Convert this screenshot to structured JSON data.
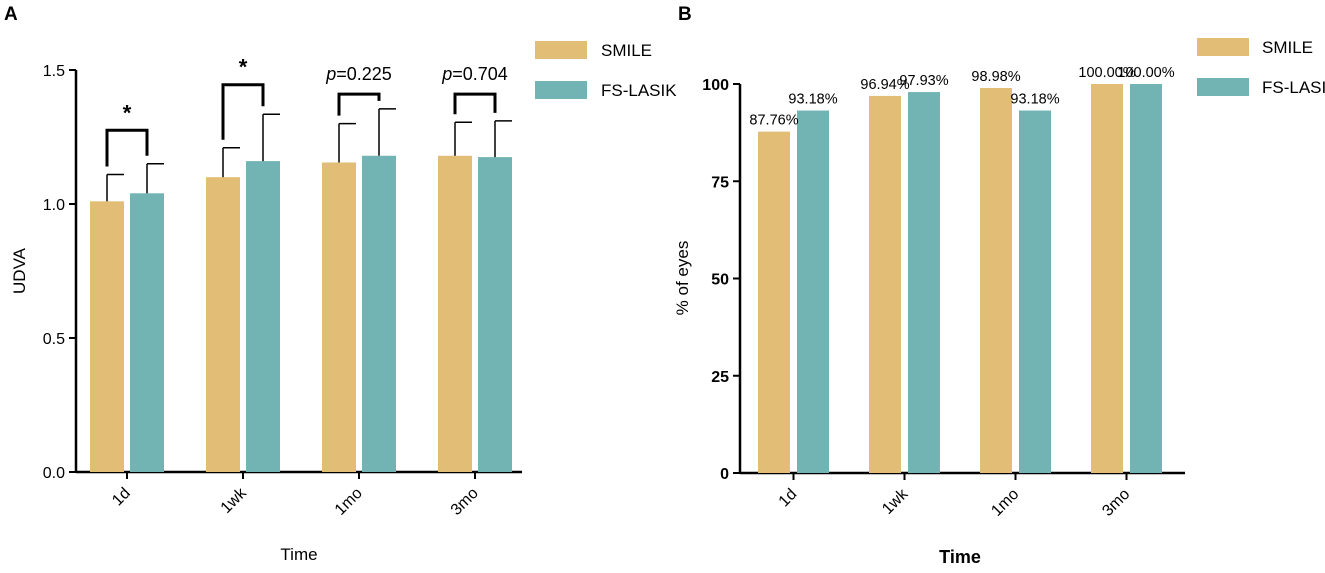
{
  "colors": {
    "smile": "#E2BD75",
    "fslasik": "#72B4B4",
    "axis": "#000000"
  },
  "chart_data": [
    {
      "panel_label": "A",
      "type": "bar",
      "categories": [
        "1d",
        "1wk",
        "1mo",
        "3mo"
      ],
      "series": [
        {
          "name": "SMILE",
          "values": [
            1.01,
            1.1,
            1.155,
            1.18
          ],
          "sd": [
            0.1,
            0.11,
            0.145,
            0.125
          ]
        },
        {
          "name": "FS-LASIK",
          "values": [
            1.04,
            1.16,
            1.18,
            1.175
          ],
          "sd": [
            0.11,
            0.175,
            0.175,
            0.135
          ]
        }
      ],
      "ylim": [
        0,
        1.5
      ],
      "yticks": [
        "0.0",
        "0.5",
        "1.0",
        "1.5"
      ],
      "xlabel": "Time",
      "ylabel": "UDVA",
      "legend": [
        "SMILE",
        "FS-LASIK"
      ],
      "legend_position": "top-right",
      "significance": [
        {
          "category": "1d",
          "label": "*",
          "bracket_top": 1.275
        },
        {
          "category": "1wk",
          "label": "*",
          "bracket_top": 1.445
        },
        {
          "category": "1mo",
          "p_label": "p",
          "p_value": "=0.225",
          "bracket_top": 1.41
        },
        {
          "category": "3mo",
          "p_label": "p",
          "p_value": "=0.704",
          "bracket_top": 1.41
        }
      ]
    },
    {
      "panel_label": "B",
      "type": "bar",
      "categories": [
        "1d",
        "1wk",
        "1mo",
        "3mo"
      ],
      "series": [
        {
          "name": "SMILE",
          "values": [
            87.76,
            96.94,
            98.98,
            100.0
          ],
          "labels": [
            "87.76%",
            "96.94%",
            "98.98%",
            "100.00%"
          ]
        },
        {
          "name": "FS-LASIK",
          "values": [
            93.18,
            97.93,
            93.18,
            100.0
          ],
          "labels": [
            "93.18%",
            "97.93%",
            "93.18%",
            "100.00%"
          ]
        }
      ],
      "ylim": [
        0,
        100
      ],
      "yticks": [
        "0",
        "25",
        "50",
        "75",
        "100"
      ],
      "xlabel": "Time",
      "ylabel": "% of eyes",
      "legend": [
        "SMILE",
        "FS-LASIK"
      ],
      "legend_position": "top-right"
    }
  ]
}
